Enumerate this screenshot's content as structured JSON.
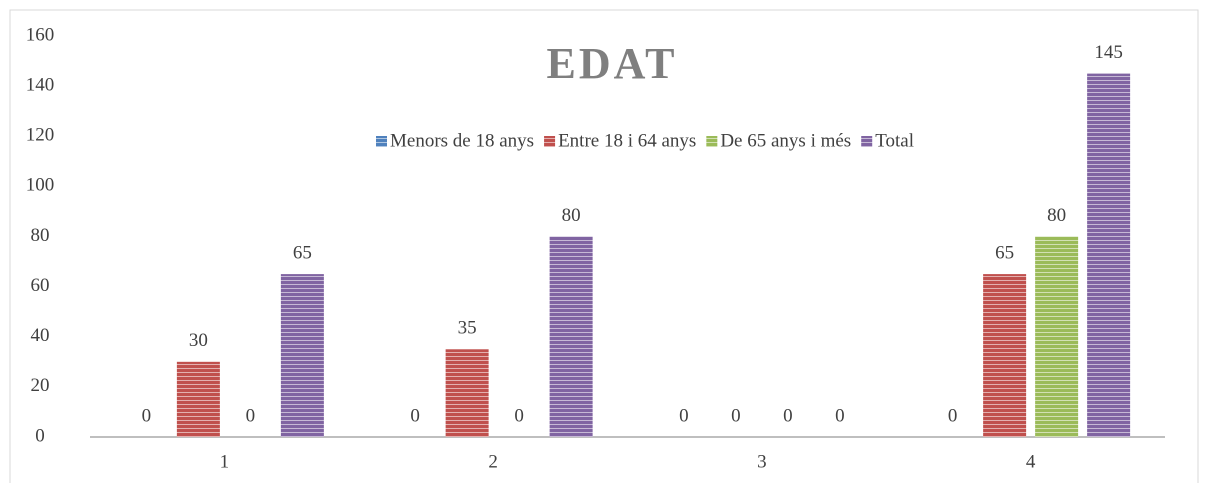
{
  "chart_data": {
    "type": "bar",
    "title": "EDAT",
    "categories": [
      "1",
      "2",
      "3",
      "4"
    ],
    "series": [
      {
        "name": "Menors de 18 anys",
        "color": "#4f81bd",
        "values": [
          0,
          0,
          0,
          0
        ]
      },
      {
        "name": "Entre 18 i 64 anys",
        "color": "#c0504d",
        "values": [
          30,
          35,
          0,
          65
        ]
      },
      {
        "name": "De 65 anys i més",
        "color": "#9bbb59",
        "values": [
          0,
          0,
          0,
          80
        ]
      },
      {
        "name": "Total",
        "color": "#8064a2",
        "values": [
          65,
          80,
          0,
          145
        ]
      }
    ],
    "ylim": [
      0,
      160
    ],
    "yticks": [
      0,
      20,
      40,
      60,
      80,
      100,
      120,
      140,
      160
    ],
    "legend": "top",
    "grid": false
  }
}
